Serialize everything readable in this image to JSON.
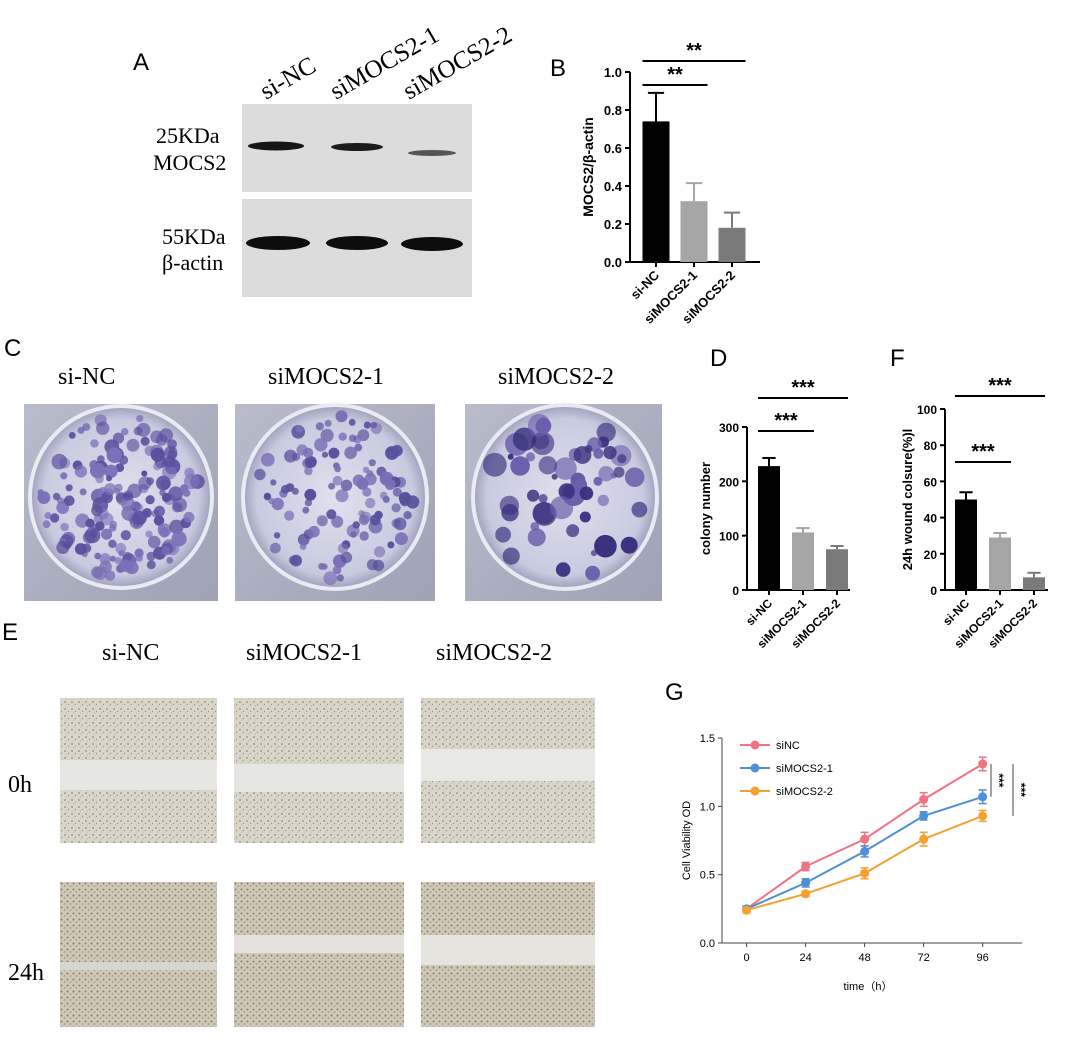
{
  "panels": {
    "A": {
      "letter": "A",
      "lanes": [
        "si-NC",
        "siMOCS2-1",
        "siMOCS2-2"
      ],
      "rows": [
        {
          "kda": "25KDa",
          "protein": "MOCS2"
        },
        {
          "kda": "55KDa",
          "protein": "β-actin"
        }
      ]
    },
    "C": {
      "letter": "C",
      "labels": [
        "si-NC",
        "siMOCS2-1",
        "siMOCS2-2"
      ]
    },
    "E": {
      "letter": "E",
      "labels": [
        "si-NC",
        "siMOCS2-1",
        "siMOCS2-2"
      ],
      "rows": [
        "0h",
        "24h"
      ]
    }
  },
  "chart_data": [
    {
      "id": "B",
      "letter": "B",
      "type": "bar",
      "categories": [
        "si-NC",
        "siMOCS2-1",
        "siMOCS2-2"
      ],
      "values": [
        0.74,
        0.32,
        0.18
      ],
      "errors": [
        0.15,
        0.095,
        0.08
      ],
      "colors": [
        "#000000",
        "#a5a5a5",
        "#7a7a7a"
      ],
      "ylabel": "MOCS2/β-actin",
      "ylim": [
        0,
        1.0
      ],
      "yticks": [
        "0.0",
        "0.2",
        "0.4",
        "0.6",
        "0.8",
        "1.0"
      ],
      "significance": [
        {
          "from": 0,
          "to": 1,
          "label": "**"
        },
        {
          "from": 0,
          "to": 2,
          "label": "**"
        }
      ]
    },
    {
      "id": "D",
      "letter": "D",
      "type": "bar",
      "categories": [
        "si-NC",
        "siMOCS2-1",
        "siMOCS2-2"
      ],
      "values": [
        228,
        106,
        75
      ],
      "errors": [
        15,
        8,
        6
      ],
      "colors": [
        "#000000",
        "#a5a5a5",
        "#7a7a7a"
      ],
      "ylabel": "colony number",
      "ylim": [
        0,
        300
      ],
      "yticks": [
        "0",
        "100",
        "200",
        "300"
      ],
      "significance": [
        {
          "from": 0,
          "to": 1,
          "label": "***"
        },
        {
          "from": 0,
          "to": 2,
          "label": "***"
        }
      ]
    },
    {
      "id": "F",
      "letter": "F",
      "type": "bar",
      "categories": [
        "si-NC",
        "siMOCS2-1",
        "siMOCS2-2"
      ],
      "values": [
        50,
        29,
        7
      ],
      "errors": [
        4,
        2.5,
        2.5
      ],
      "colors": [
        "#000000",
        "#a5a5a5",
        "#7a7a7a"
      ],
      "ylabel": "24h wound colsure(%)l",
      "ylim": [
        0,
        100
      ],
      "yticks": [
        "0",
        "20",
        "40",
        "60",
        "80",
        "100"
      ],
      "significance": [
        {
          "from": 0,
          "to": 1,
          "label": "***"
        },
        {
          "from": 0,
          "to": 2,
          "label": "***"
        }
      ]
    },
    {
      "id": "G",
      "letter": "G",
      "type": "line",
      "x": [
        0,
        24,
        48,
        72,
        96
      ],
      "xticks": [
        "0",
        "24",
        "48",
        "72",
        "96"
      ],
      "yticks": [
        "0.0",
        "0.5",
        "1.0",
        "1.5"
      ],
      "xlabel": "time（h）",
      "ylabel": "Cell Viability OD",
      "xlim": [
        -10,
        112
      ],
      "ylim": [
        0,
        1.5
      ],
      "series": [
        {
          "name": "siNC",
          "color": "#f07383",
          "values": [
            0.25,
            0.56,
            0.76,
            1.05,
            1.31
          ],
          "errors": [
            0.02,
            0.03,
            0.05,
            0.05,
            0.05
          ]
        },
        {
          "name": "siMOCS2-1",
          "color": "#4f8fd6",
          "values": [
            0.25,
            0.44,
            0.67,
            0.93,
            1.07
          ],
          "errors": [
            0.02,
            0.03,
            0.04,
            0.03,
            0.05
          ]
        },
        {
          "name": "siMOCS2-2",
          "color": "#f5a131",
          "values": [
            0.24,
            0.36,
            0.51,
            0.76,
            0.93
          ],
          "errors": [
            0.02,
            0.02,
            0.04,
            0.05,
            0.04
          ]
        }
      ],
      "significance": [
        "***",
        "***"
      ]
    }
  ]
}
